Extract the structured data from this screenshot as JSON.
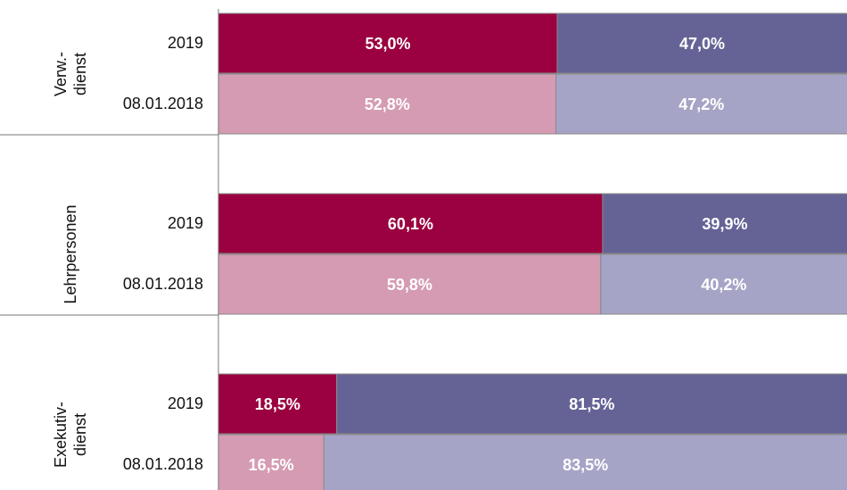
{
  "chart_data": {
    "type": "stacked-bar-horizontal",
    "categories": [
      "2019",
      "08.01.2018",
      "2019",
      "08.01.2018",
      "2019",
      "08.01.2018"
    ],
    "groups": [
      {
        "lines": [
          "Verw.-",
          "dienst"
        ]
      },
      {
        "lines": [
          "Lehrpersonen"
        ]
      },
      {
        "lines": [
          "Exekutiv-",
          "dienst"
        ]
      }
    ],
    "xlim": [
      0,
      100
    ],
    "series": [
      {
        "colors": [
          "#9b0040",
          "#d59bb3",
          "#9b0040",
          "#d59bb3",
          "#9b0040",
          "#d59bb3"
        ],
        "values": [
          53.0,
          52.8,
          60.1,
          59.8,
          18.5,
          16.5
        ],
        "value_labels": [
          "53,0%",
          "52,8%",
          "60,1%",
          "59,8%",
          "18,5%",
          "16,5%"
        ]
      },
      {
        "colors": [
          "#656396",
          "#a6a4c6",
          "#656396",
          "#a6a4c6",
          "#656396",
          "#a6a4c6"
        ],
        "values": [
          47.0,
          47.2,
          39.9,
          40.2,
          81.5,
          83.5
        ],
        "value_labels": [
          "47,0%",
          "47,2%",
          "39,9%",
          "40,2%",
          "81,5%",
          "83,5%"
        ]
      }
    ]
  }
}
